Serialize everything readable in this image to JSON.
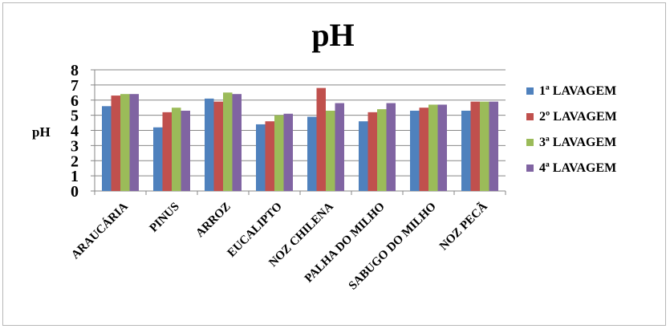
{
  "chart_data": {
    "type": "bar",
    "title": "pH",
    "ylabel": "pH",
    "xlabel": "",
    "ylim": [
      0,
      8
    ],
    "yticks": [
      "0",
      "1",
      "2",
      "3",
      "4",
      "5",
      "6",
      "7",
      "8"
    ],
    "grid": true,
    "legend_position": "right",
    "categories": [
      "ARAUCÁRIA",
      "PINUS",
      "ARROZ",
      "EUCALIPTO",
      "NOZ CHILENA",
      "PALHA DO MILHO",
      "SABUGO DO MILHO",
      "NOZ PECÃ"
    ],
    "series": [
      {
        "name": "1ª LAVAGEM",
        "color": "#4f81bd",
        "values": [
          5.6,
          4.2,
          6.1,
          4.4,
          4.9,
          4.6,
          5.3,
          5.3
        ]
      },
      {
        "name": "2º LAVAGEM",
        "color": "#c0504d",
        "values": [
          6.3,
          5.2,
          5.9,
          4.6,
          6.8,
          5.2,
          5.5,
          5.9
        ]
      },
      {
        "name": "3ª LAVAGEM",
        "color": "#9bbb59",
        "values": [
          6.4,
          5.5,
          6.5,
          5.0,
          5.3,
          5.4,
          5.7,
          5.9
        ]
      },
      {
        "name": "4ª LAVAGEM",
        "color": "#8064a2",
        "values": [
          6.4,
          5.3,
          6.4,
          5.1,
          5.8,
          5.8,
          5.7,
          5.9
        ]
      }
    ]
  }
}
